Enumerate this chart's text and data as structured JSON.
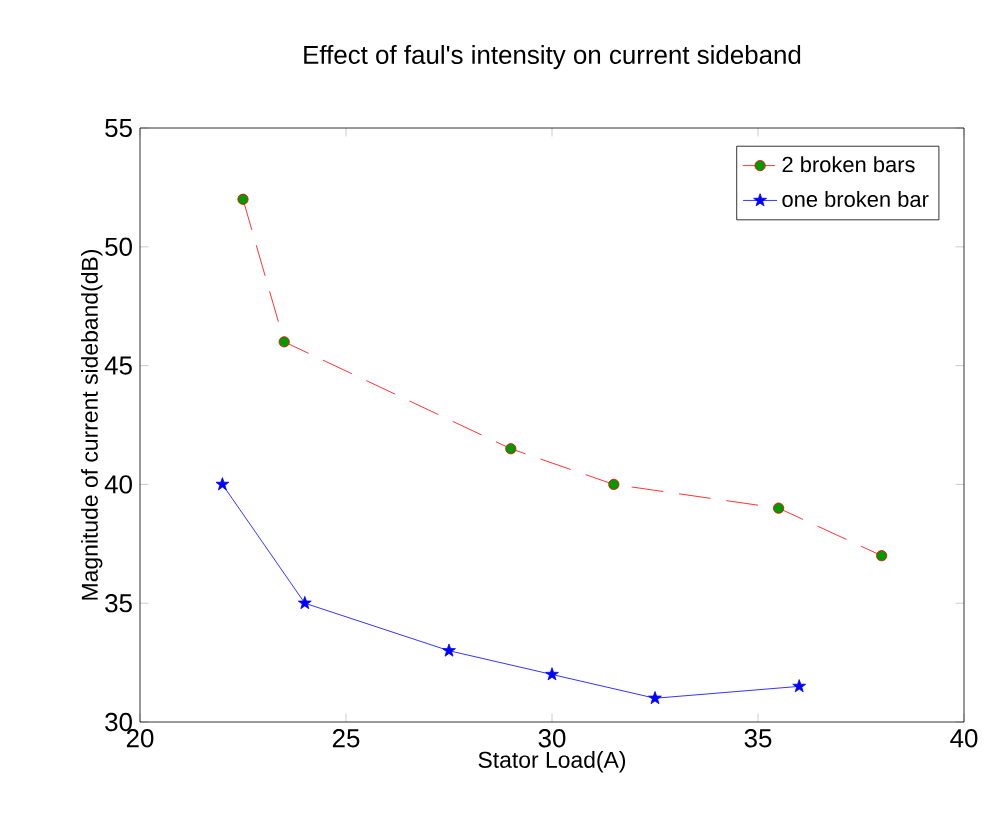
{
  "chart_data": {
    "type": "line",
    "title": "Effect of faul's intensity on current sideband",
    "xlabel": "Stator Load(A)",
    "ylabel": "Magnitude of current sideband(dB)",
    "xlim": [
      20,
      40
    ],
    "xticks": [
      20,
      25,
      30,
      35,
      40
    ],
    "ylim": [
      30,
      55
    ],
    "yticks": [
      30,
      35,
      40,
      45,
      50,
      55
    ],
    "grid": false,
    "legend": "top right",
    "series": [
      {
        "name": "2 broken bars",
        "color": "#ff0000",
        "marker": "circle",
        "line_style": "dashed",
        "x": [
          22.5,
          23.5,
          29,
          31.5,
          35.5,
          38
        ],
        "values": [
          52,
          46,
          41.5,
          40,
          39,
          37
        ]
      },
      {
        "name": "one broken bar",
        "color": "#0000ff",
        "marker": "star",
        "line_style": "solid",
        "x": [
          22,
          24,
          27.5,
          30,
          32.5,
          36
        ],
        "values": [
          40,
          35,
          33,
          32,
          31,
          31.5
        ]
      }
    ]
  }
}
